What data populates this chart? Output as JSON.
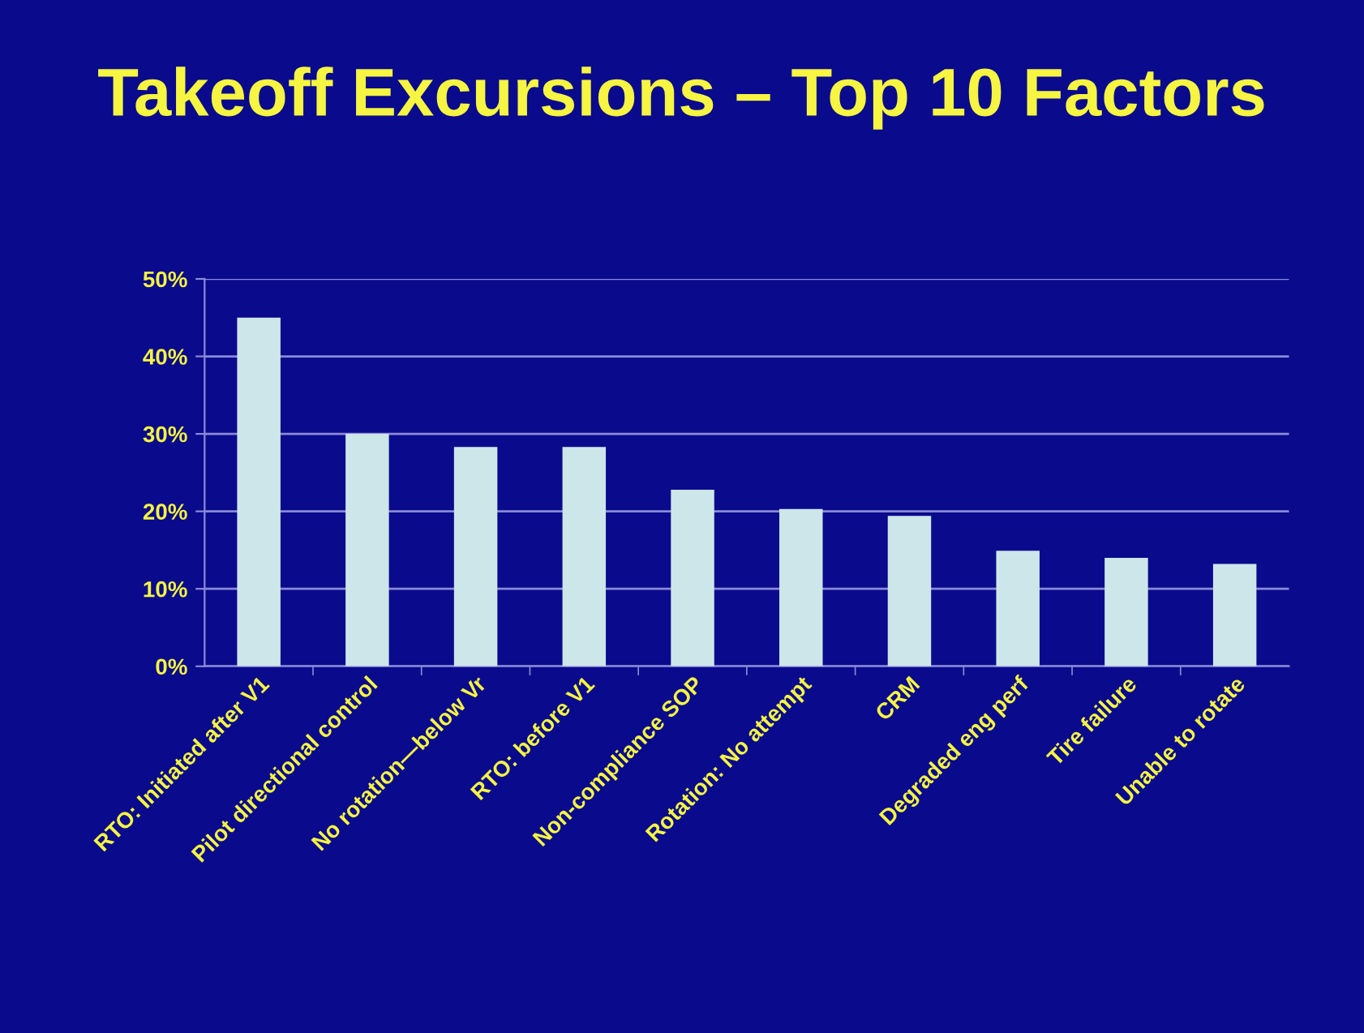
{
  "chart_data": {
    "type": "bar",
    "title": "Takeoff Excursions – Top 10 Factors",
    "categories": [
      "RTO: Initiated after V1",
      "Pilot directional control",
      "No rotation—below Vr",
      "RTO: before V1",
      "Non-compliance SOP",
      "Rotation: No attempt",
      "CRM",
      "Degraded eng perf",
      "Tire failure",
      "Unable to rotate"
    ],
    "values": [
      45,
      30,
      28.3,
      28.3,
      22.8,
      20.3,
      19.4,
      14.9,
      14.0,
      13.2
    ],
    "color": "#cde6ea",
    "ylim": [
      0,
      50
    ],
    "yticks": [
      {
        "value": 0,
        "label": "0%"
      },
      {
        "value": 10,
        "label": "10%"
      },
      {
        "value": 20,
        "label": "20%"
      },
      {
        "value": 30,
        "label": "30%"
      },
      {
        "value": 40,
        "label": "40%"
      },
      {
        "value": 50,
        "label": "50%"
      }
    ],
    "grid": "y"
  }
}
